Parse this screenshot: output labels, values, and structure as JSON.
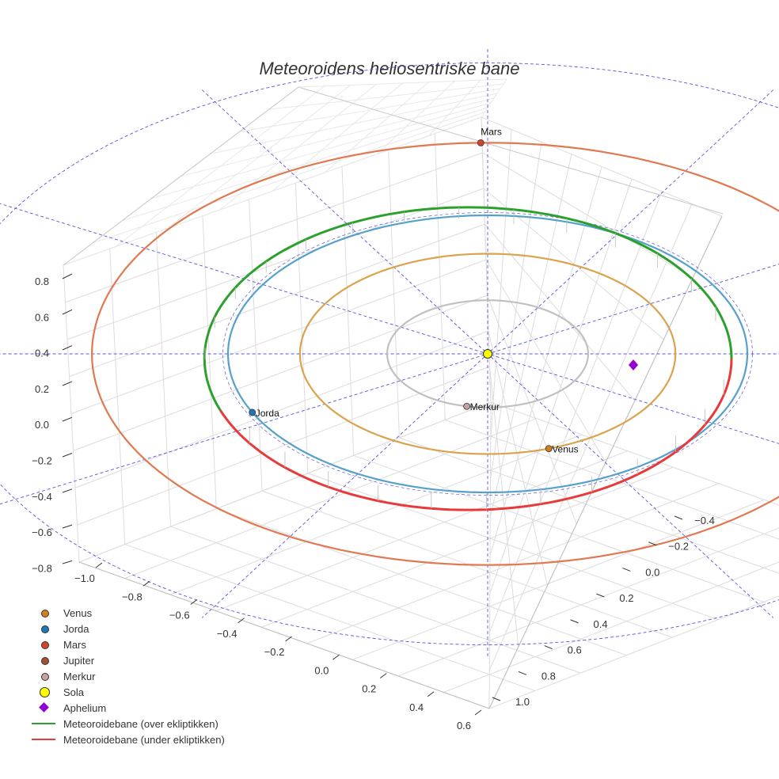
{
  "chart_data": {
    "type": "line",
    "title": "Meteoroidens heliosentriske bane",
    "xlabel": "",
    "ylabel": "",
    "zlabel": "",
    "xlim": [
      -1.1,
      0.65
    ],
    "ylim": [
      -0.5,
      1.1
    ],
    "zlim": [
      -0.85,
      0.85
    ],
    "x_ticks": [
      "−1.0",
      "−0.8",
      "−0.6",
      "−0.4",
      "−0.2",
      "0.0",
      "0.2",
      "0.4",
      "0.6"
    ],
    "y_ticks": [
      "−0.4",
      "−0.2",
      "0.0",
      "0.2",
      "0.4",
      "0.6",
      "0.8",
      "1.0"
    ],
    "z_ticks": [
      "0.8",
      "0.6",
      "0.4",
      "0.2",
      "0.0",
      "−0.2",
      "−0.4",
      "−0.6",
      "−0.8"
    ],
    "grid": true,
    "legend_position": "bottom-left",
    "orbits": [
      {
        "name": "Merkur",
        "semi_axis_au": 0.387,
        "color": "#c0c0c0"
      },
      {
        "name": "Venus",
        "semi_axis_au": 0.723,
        "color": "#daa34d"
      },
      {
        "name": "Jorda",
        "semi_axis_au": 1.0,
        "color": "#55a0cc"
      },
      {
        "name": "Mars",
        "semi_axis_au": 1.524,
        "color": "#e07850"
      }
    ],
    "meteoroid_orbit": {
      "semi_major_au": 0.86,
      "eccentricity": 0.16,
      "above_ecliptic": "Meteoroidebane (over ekliptikken)",
      "below_ecliptic": "Meteoroidebane (under ekliptikken)",
      "above_color": "#2ca02c",
      "below_color": "#e83a3a"
    },
    "planet_labels": [
      {
        "name": "Venus",
        "orbit": 0.723,
        "angle_deg": 289,
        "color": "#d2801e"
      },
      {
        "name": "Jorda",
        "orbit": 1.0,
        "angle_deg": 205,
        "color": "#1f77b4"
      },
      {
        "name": "Mars",
        "orbit": 1.524,
        "angle_deg": 91,
        "color": "#d2452a"
      },
      {
        "name": "Merkur",
        "orbit": 0.387,
        "angle_deg": 258,
        "color": "#c8a0a0"
      }
    ],
    "aphelium": {
      "name": "Aphelium",
      "orbit": 1.0,
      "angle_deg": 357,
      "color": "#9400d3"
    },
    "legend": [
      {
        "label": "Venus",
        "marker": "dot",
        "color": "#d2801e"
      },
      {
        "label": "Jorda",
        "marker": "dot",
        "color": "#1f77b4"
      },
      {
        "label": "Mars",
        "marker": "dot",
        "color": "#d2452a"
      },
      {
        "label": "Jupiter",
        "marker": "dot",
        "color": "#a0522d"
      },
      {
        "label": "Merkur",
        "marker": "dot",
        "color": "#c8a0a0"
      },
      {
        "label": "Sola",
        "marker": "sun",
        "color": "#ffff00"
      },
      {
        "label": "Aphelium",
        "marker": "diamond",
        "color": "#9400d3"
      },
      {
        "label": "Meteoroidebane (over ekliptikken)",
        "marker": "line",
        "color": "#2ca02c"
      },
      {
        "label": "Meteoroidebane (under ekliptikken)",
        "marker": "line",
        "color": "#e83a3a"
      }
    ]
  }
}
